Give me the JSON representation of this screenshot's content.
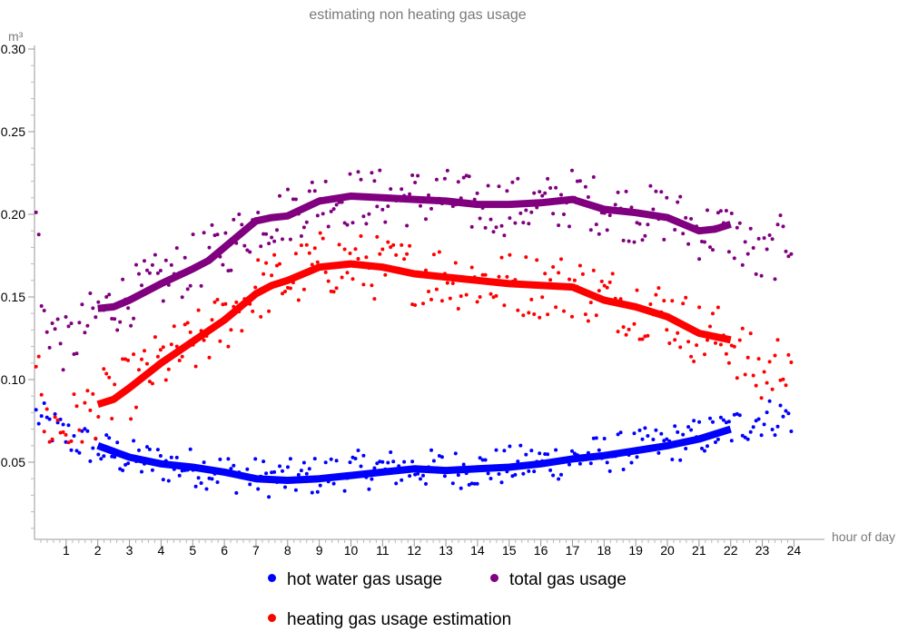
{
  "chart_data": {
    "type": "scatter",
    "title": "estimating non heating gas usage",
    "xlabel": "hour of day",
    "ylabel": "m³",
    "xlim": [
      0,
      24.4
    ],
    "ylim": [
      0,
      0.3
    ],
    "x_ticks": [
      "1",
      "2",
      "3",
      "4",
      "5",
      "6",
      "7",
      "8",
      "9",
      "10",
      "11",
      "12",
      "13",
      "14",
      "15",
      "16",
      "17",
      "18",
      "19",
      "20",
      "21",
      "22",
      "23",
      "24"
    ],
    "y_ticks": [
      "0.05",
      "0.10",
      "0.15",
      "0.20",
      "0.25",
      "0.30"
    ],
    "legend_placement": "bottom",
    "series": [
      {
        "name": "hot water gas usage",
        "color": "#0000ff",
        "points_envelope": [
          [
            0.2,
            0.075
          ],
          [
            1,
            0.066
          ],
          [
            2,
            0.058
          ],
          [
            3,
            0.052
          ],
          [
            4,
            0.049
          ],
          [
            5,
            0.047
          ],
          [
            6,
            0.044
          ],
          [
            7,
            0.041
          ],
          [
            8,
            0.04
          ],
          [
            9,
            0.042
          ],
          [
            10,
            0.045
          ],
          [
            11,
            0.046
          ],
          [
            12,
            0.046
          ],
          [
            13,
            0.046
          ],
          [
            14,
            0.046
          ],
          [
            15,
            0.048
          ],
          [
            16,
            0.05
          ],
          [
            17,
            0.052
          ],
          [
            18,
            0.055
          ],
          [
            19,
            0.058
          ],
          [
            20,
            0.061
          ],
          [
            21,
            0.065
          ],
          [
            22,
            0.07
          ],
          [
            23,
            0.077
          ],
          [
            24,
            0.078
          ]
        ],
        "trend": [
          [
            2,
            0.06
          ],
          [
            3,
            0.053
          ],
          [
            4,
            0.049
          ],
          [
            5,
            0.047
          ],
          [
            6,
            0.044
          ],
          [
            7,
            0.04
          ],
          [
            8,
            0.039
          ],
          [
            9,
            0.04
          ],
          [
            10,
            0.042
          ],
          [
            11,
            0.044
          ],
          [
            12,
            0.046
          ],
          [
            13,
            0.045
          ],
          [
            14,
            0.046
          ],
          [
            15,
            0.047
          ],
          [
            16,
            0.049
          ],
          [
            17,
            0.052
          ],
          [
            18,
            0.054
          ],
          [
            19,
            0.057
          ],
          [
            20,
            0.06
          ],
          [
            21,
            0.064
          ],
          [
            22,
            0.07
          ]
        ]
      },
      {
        "name": "total gas usage",
        "color": "#800080",
        "points_envelope": [
          [
            0.2,
            0.14
          ],
          [
            1,
            0.12
          ],
          [
            2,
            0.14
          ],
          [
            3,
            0.15
          ],
          [
            4,
            0.16
          ],
          [
            5,
            0.17
          ],
          [
            6,
            0.18
          ],
          [
            7,
            0.195
          ],
          [
            8,
            0.2
          ],
          [
            9,
            0.21
          ],
          [
            10,
            0.21
          ],
          [
            11,
            0.21
          ],
          [
            12,
            0.21
          ],
          [
            13,
            0.21
          ],
          [
            14,
            0.205
          ],
          [
            15,
            0.205
          ],
          [
            16,
            0.205
          ],
          [
            17,
            0.21
          ],
          [
            18,
            0.205
          ],
          [
            19,
            0.2
          ],
          [
            20,
            0.2
          ],
          [
            21,
            0.19
          ],
          [
            22,
            0.19
          ],
          [
            23,
            0.17
          ],
          [
            24,
            0.19
          ]
        ],
        "trend": [
          [
            2,
            0.143
          ],
          [
            2.5,
            0.144
          ],
          [
            3,
            0.148
          ],
          [
            4,
            0.158
          ],
          [
            5,
            0.167
          ],
          [
            5.5,
            0.172
          ],
          [
            6,
            0.18
          ],
          [
            7,
            0.196
          ],
          [
            7.5,
            0.198
          ],
          [
            8,
            0.199
          ],
          [
            9,
            0.208
          ],
          [
            10,
            0.211
          ],
          [
            11,
            0.21
          ],
          [
            12,
            0.209
          ],
          [
            13,
            0.208
          ],
          [
            14,
            0.206
          ],
          [
            15,
            0.206
          ],
          [
            16,
            0.207
          ],
          [
            17,
            0.209
          ],
          [
            18,
            0.203
          ],
          [
            19,
            0.201
          ],
          [
            20,
            0.198
          ],
          [
            21,
            0.19
          ],
          [
            21.5,
            0.191
          ],
          [
            22,
            0.194
          ]
        ]
      },
      {
        "name": "heating gas usage estimation",
        "color": "#ff0000",
        "points_envelope": [
          [
            0.2,
            0.075
          ],
          [
            1,
            0.07
          ],
          [
            2,
            0.085
          ],
          [
            3,
            0.095
          ],
          [
            4,
            0.11
          ],
          [
            5,
            0.12
          ],
          [
            6,
            0.135
          ],
          [
            7,
            0.155
          ],
          [
            8,
            0.16
          ],
          [
            9,
            0.17
          ],
          [
            10,
            0.17
          ],
          [
            11,
            0.167
          ],
          [
            12,
            0.165
          ],
          [
            13,
            0.163
          ],
          [
            14,
            0.16
          ],
          [
            15,
            0.158
          ],
          [
            16,
            0.157
          ],
          [
            17,
            0.157
          ],
          [
            18,
            0.15
          ],
          [
            19,
            0.145
          ],
          [
            20,
            0.14
          ],
          [
            21,
            0.128
          ],
          [
            22,
            0.124
          ],
          [
            23,
            0.1
          ],
          [
            24,
            0.12
          ]
        ],
        "trend": [
          [
            2,
            0.085
          ],
          [
            2.5,
            0.088
          ],
          [
            3,
            0.095
          ],
          [
            4,
            0.11
          ],
          [
            5,
            0.123
          ],
          [
            6,
            0.136
          ],
          [
            7,
            0.152
          ],
          [
            7.5,
            0.157
          ],
          [
            8,
            0.16
          ],
          [
            9,
            0.168
          ],
          [
            10,
            0.17
          ],
          [
            11,
            0.168
          ],
          [
            12,
            0.164
          ],
          [
            13,
            0.162
          ],
          [
            14,
            0.16
          ],
          [
            15,
            0.158
          ],
          [
            16,
            0.157
          ],
          [
            17,
            0.156
          ],
          [
            18,
            0.148
          ],
          [
            19,
            0.144
          ],
          [
            20,
            0.138
          ],
          [
            21,
            0.128
          ],
          [
            22,
            0.124
          ]
        ]
      }
    ]
  }
}
